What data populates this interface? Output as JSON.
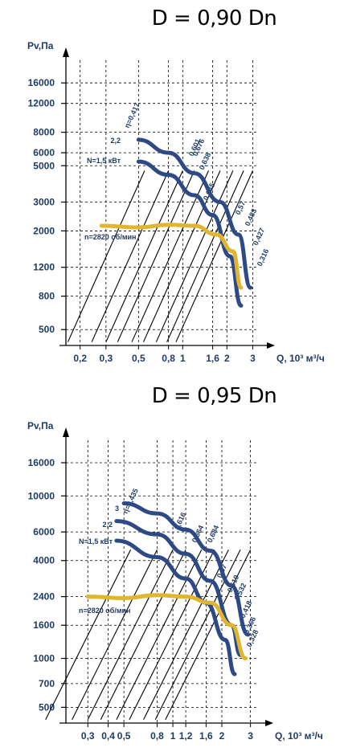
{
  "chart_data": [
    {
      "type": "line",
      "title": "D = 0,90 Dn",
      "xlabel": "Q, 10³ м³/ч",
      "ylabel": "Pv,Па",
      "x_ticks": [
        "0,2",
        "0,3",
        "0,5",
        "0,8",
        "1",
        "1,6",
        "2",
        "3"
      ],
      "y_ticks": [
        "16000",
        "12000",
        "8000",
        "6000",
        "5000",
        "3000",
        "2000",
        "1200",
        "800",
        "500"
      ],
      "series": [
        {
          "name": "2,2",
          "color": "#2e4a86",
          "points": [
            [
              0.5,
              7200
            ],
            [
              0.8,
              6000
            ],
            [
              1.2,
              4500
            ],
            [
              1.8,
              3000
            ],
            [
              2.4,
              1900
            ],
            [
              2.9,
              900
            ]
          ]
        },
        {
          "name": "N=1,5 кВт",
          "color": "#2e4a86",
          "points": [
            [
              0.5,
              5300
            ],
            [
              0.8,
              4400
            ],
            [
              1.2,
              3300
            ],
            [
              1.6,
              2500
            ],
            [
              2.1,
              1400
            ],
            [
              2.5,
              700
            ]
          ]
        },
        {
          "name": "n=2820 об/мин",
          "color": "#e0b530",
          "points": [
            [
              0.28,
              2150
            ],
            [
              0.5,
              2100
            ],
            [
              0.8,
              2180
            ],
            [
              1.2,
              2150
            ],
            [
              1.7,
              1900
            ],
            [
              2.2,
              1500
            ],
            [
              2.5,
              900
            ]
          ]
        }
      ],
      "efficiency_labels": [
        "η=0,417",
        "0,601",
        "0,638",
        "0,676",
        "0,645",
        "0,57",
        "0,483",
        "0,427",
        "0,316"
      ]
    },
    {
      "type": "line",
      "title": "D = 0,95 Dn",
      "xlabel": "Q, 10³ м³/ч",
      "ylabel": "Pv,Па",
      "x_ticks": [
        "0,3",
        "0,4",
        "0,5",
        "0,8",
        "1",
        "1,2",
        "1,6",
        "2",
        "3"
      ],
      "y_ticks": [
        "16000",
        "10000",
        "6000",
        "4000",
        "2400",
        "1600",
        "1000",
        "700",
        "500"
      ],
      "series": [
        {
          "name": "3",
          "color": "#2e4a86",
          "points": [
            [
              0.5,
              9000
            ],
            [
              0.8,
              7800
            ],
            [
              1.2,
              6200
            ],
            [
              1.7,
              4600
            ],
            [
              2.3,
              2800
            ],
            [
              2.9,
              1400
            ]
          ]
        },
        {
          "name": "2,2",
          "color": "#2e4a86",
          "points": [
            [
              0.45,
              7000
            ],
            [
              0.8,
              5800
            ],
            [
              1.2,
              4400
            ],
            [
              1.7,
              3000
            ],
            [
              2.3,
              1600
            ],
            [
              2.6,
              1050
            ]
          ]
        },
        {
          "name": "N=1,5 кВт",
          "color": "#2e4a86",
          "points": [
            [
              0.45,
              5300
            ],
            [
              0.8,
              4200
            ],
            [
              1.2,
              3100
            ],
            [
              1.6,
              2200
            ],
            [
              2.1,
              1300
            ],
            [
              2.4,
              800
            ]
          ]
        },
        {
          "name": "n=2820 об/мин",
          "color": "#e0b530",
          "points": [
            [
              0.3,
              2400
            ],
            [
              0.5,
              2350
            ],
            [
              0.8,
              2450
            ],
            [
              1.2,
              2400
            ],
            [
              1.7,
              2200
            ],
            [
              2.3,
              1600
            ],
            [
              2.8,
              1000
            ]
          ]
        }
      ],
      "efficiency_labels": [
        "η=0,435",
        "0,616",
        "0,664",
        "0,684",
        "0,67",
        "0,619",
        "0,532",
        "0,418",
        "0,366",
        "0,328"
      ]
    }
  ]
}
